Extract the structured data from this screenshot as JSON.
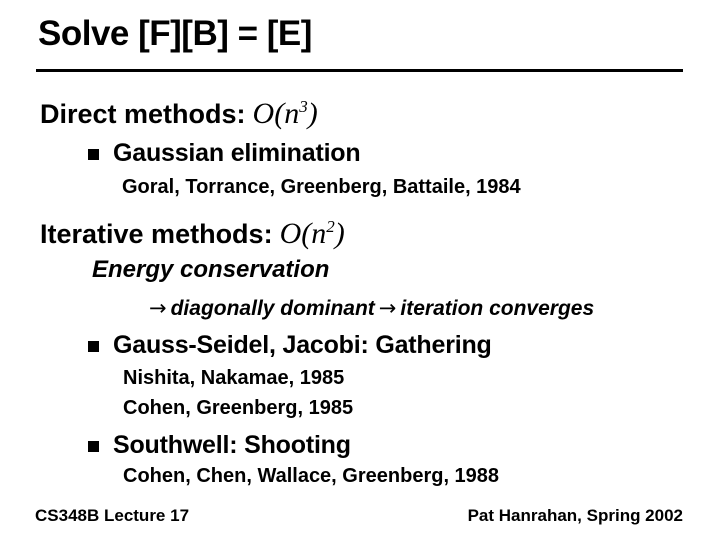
{
  "slide": {
    "title": "Solve [F][B] = [E]",
    "colors": {
      "text": "#000000",
      "background": "#ffffff"
    },
    "direct": {
      "heading": "Direct methods:",
      "complexity": {
        "base": "O(n",
        "exponent": "3",
        "close": ")"
      },
      "bullets": [
        {
          "label": "Gaussian elimination",
          "refs": [
            "Goral, Torrance, Greenberg, Battaile, 1984"
          ]
        }
      ]
    },
    "iterative": {
      "heading": "Iterative methods:",
      "complexity": {
        "base": "O(n",
        "exponent": "2",
        "close": ")"
      },
      "energy_note": "Energy conservation",
      "implication": {
        "arrow": "→",
        "first": "diagonally dominant",
        "second": "iteration converges"
      },
      "bullets": [
        {
          "label": "Gauss-Seidel, Jacobi: Gathering",
          "refs": [
            "Nishita, Nakamae, 1985",
            "Cohen, Greenberg, 1985"
          ]
        },
        {
          "label": "Southwell: Shooting",
          "refs": [
            "Cohen, Chen, Wallace, Greenberg, 1988"
          ]
        }
      ]
    },
    "footer": {
      "left": "CS348B Lecture 17",
      "right": "Pat Hanrahan, Spring 2002"
    }
  }
}
